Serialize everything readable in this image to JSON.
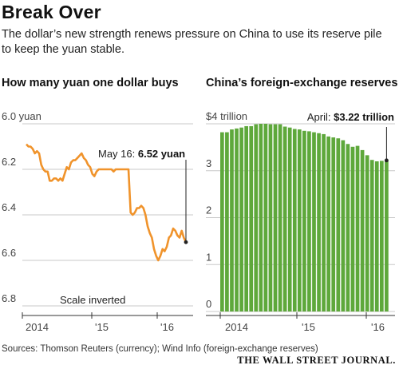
{
  "header": {
    "title": "Break Over",
    "subtitle": "The dollar’s new strength renews pressure on China to use its reserve pile to keep the yuan stable."
  },
  "panels": {
    "left_title": "How many yuan one dollar buys",
    "right_title": "China’s foreign-exchange reserves"
  },
  "footer": {
    "source": "Sources: Thomson Reuters (currency); Wind Info (foreign-exchange reserves)",
    "logo": "THE WALL STREET JOURNAL."
  },
  "colors": {
    "line": "#f0932b",
    "bar": "#5ea83b",
    "grid": "#c8c8c8",
    "axis": "#333333"
  },
  "chart_data": [
    {
      "type": "line",
      "title": "How many yuan one dollar buys",
      "ylim": [
        6.0,
        6.8
      ],
      "y_inverted": true,
      "y_ticks": [
        "6.0 yuan",
        "6.2",
        "6.4",
        "6.6",
        "6.8"
      ],
      "y_tick_values": [
        6.0,
        6.2,
        6.4,
        6.6,
        6.8
      ],
      "x_ticks": [
        "2014",
        "'15",
        "'16"
      ],
      "annotation_text": "Scale inverted",
      "last_label_prefix": "May 16:",
      "last_label_value": "6.52 yuan",
      "series": [
        {
          "values": [
            6.09,
            6.1,
            6.1,
            6.11,
            6.13,
            6.12,
            6.13,
            6.18,
            6.2,
            6.21,
            6.21,
            6.25,
            6.25,
            6.24,
            6.24,
            6.25,
            6.24,
            6.25,
            6.22,
            6.19,
            6.2,
            6.17,
            6.16,
            6.16,
            6.15,
            6.14,
            6.13,
            6.15,
            6.16,
            6.18,
            6.19,
            6.22,
            6.23,
            6.21,
            6.2,
            6.2,
            6.2,
            6.2,
            6.2,
            6.2,
            6.2,
            6.21,
            6.2,
            6.2,
            6.2,
            6.2,
            6.2,
            6.2,
            6.2,
            6.39,
            6.4,
            6.39,
            6.37,
            6.37,
            6.36,
            6.37,
            6.4,
            6.45,
            6.48,
            6.5,
            6.55,
            6.58,
            6.6,
            6.58,
            6.55,
            6.56,
            6.54,
            6.5,
            6.49,
            6.46,
            6.47,
            6.49,
            6.5,
            6.47,
            6.5,
            6.52
          ]
        }
      ]
    },
    {
      "type": "bar",
      "title": "China’s foreign-exchange reserves",
      "ylim": [
        0,
        4
      ],
      "y_ticks": [
        "0",
        "1",
        "2",
        "3",
        "$4 trillion"
      ],
      "y_tick_values": [
        0,
        1,
        2,
        3,
        4
      ],
      "x_ticks": [
        "2014",
        "'15",
        "'16"
      ],
      "last_label_prefix": "April:",
      "last_label_value": "$3.22 trillion",
      "values": [
        3.82,
        3.82,
        3.88,
        3.9,
        3.92,
        3.95,
        3.95,
        3.99,
        4.0,
        4.0,
        3.99,
        3.99,
        3.99,
        3.94,
        3.92,
        3.89,
        3.88,
        3.85,
        3.84,
        3.82,
        3.8,
        3.78,
        3.73,
        3.71,
        3.69,
        3.65,
        3.57,
        3.51,
        3.53,
        3.44,
        3.33,
        3.23,
        3.2,
        3.21,
        3.22
      ]
    }
  ]
}
